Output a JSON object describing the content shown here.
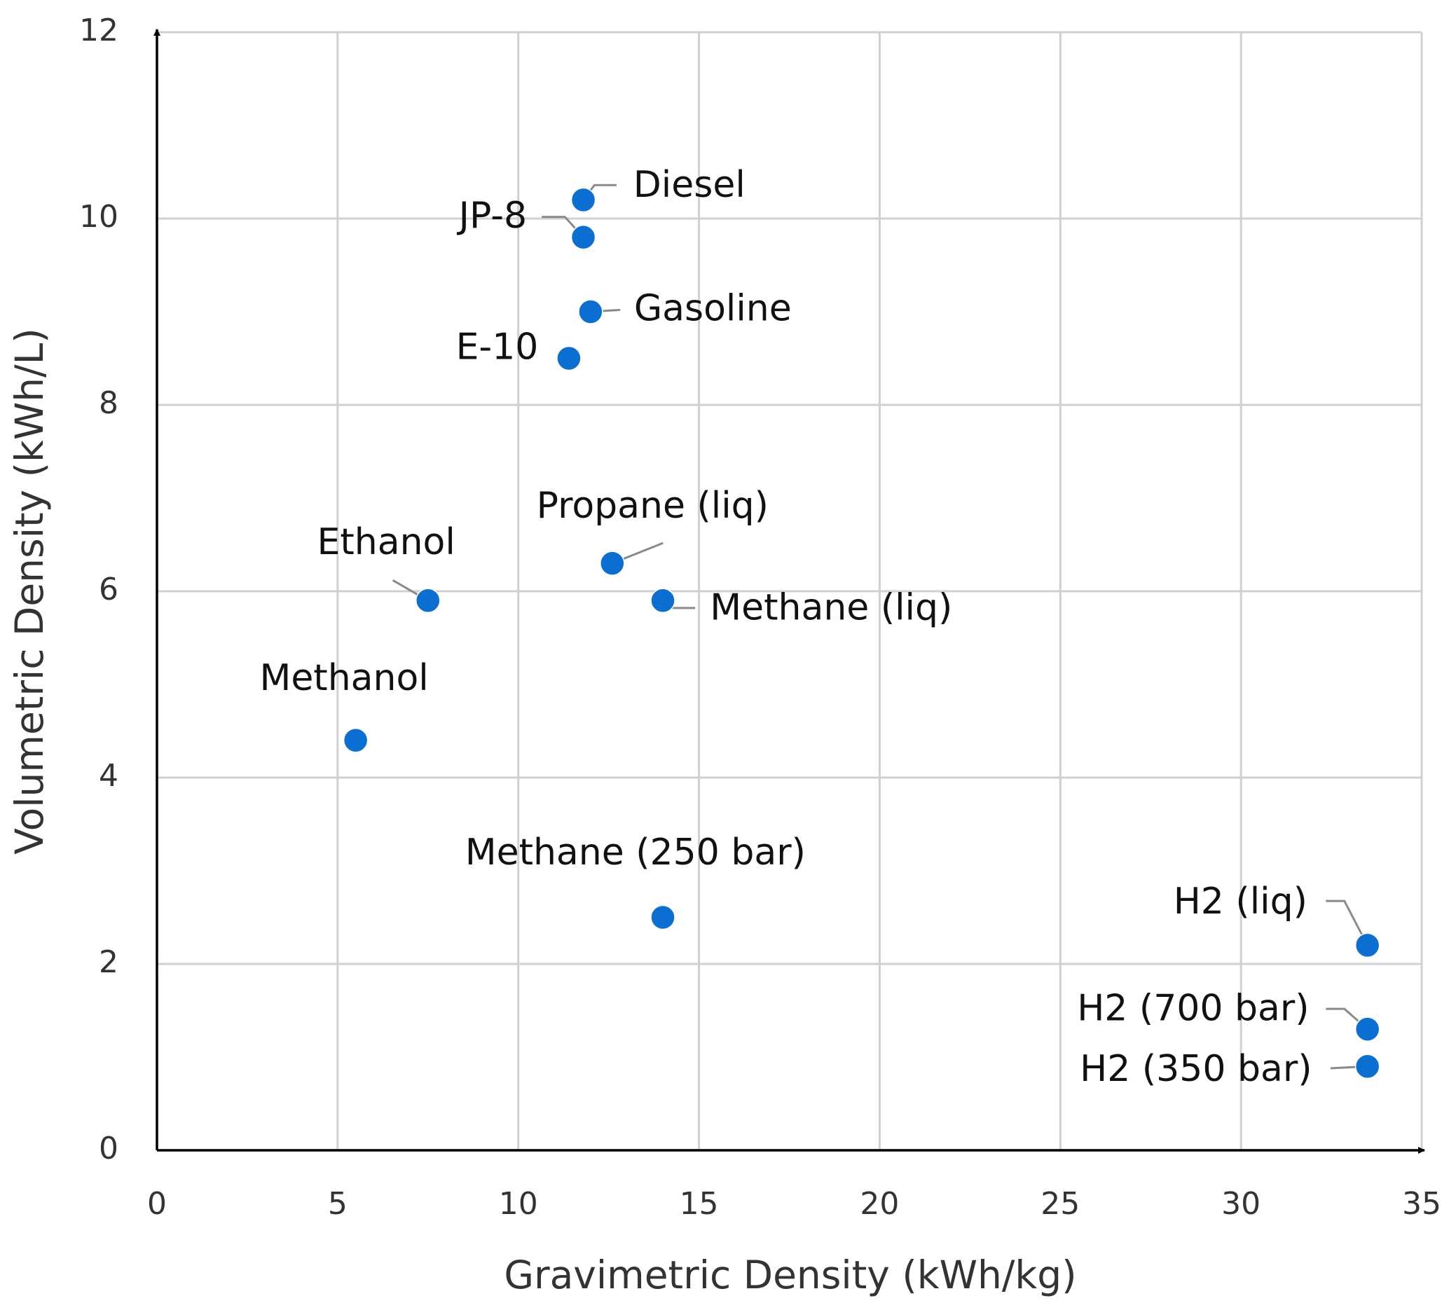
{
  "chart_data": {
    "type": "scatter",
    "xlabel": "Gravimetric Density (kWh/kg)",
    "ylabel": "Volumetric Density (kWh/L)",
    "labels": [
      "Diesel",
      "JP-8",
      "Gasoline",
      "E-10",
      "Propane (liq)",
      "Methane (liq)",
      "Ethanol",
      "Methanol",
      "Methane (250 bar)",
      "H2 (liq)",
      "H2 (700 bar)",
      "H2 (350 bar)"
    ],
    "x": [
      11.8,
      11.8,
      12.0,
      11.4,
      12.6,
      14.0,
      7.5,
      5.5,
      14.0,
      33.5,
      33.5,
      33.5
    ],
    "y": [
      10.2,
      9.8,
      9.0,
      8.5,
      6.3,
      5.9,
      5.9,
      4.4,
      2.5,
      2.2,
      1.3,
      0.9
    ],
    "color": "#0b6fd1",
    "xlim": [
      0,
      35
    ],
    "xticks": [
      0,
      5,
      10,
      15,
      20,
      25,
      30,
      35
    ],
    "ylim": [
      0,
      12
    ],
    "yticks": [
      0,
      2,
      4,
      6,
      8,
      10,
      12
    ],
    "grid": true
  }
}
